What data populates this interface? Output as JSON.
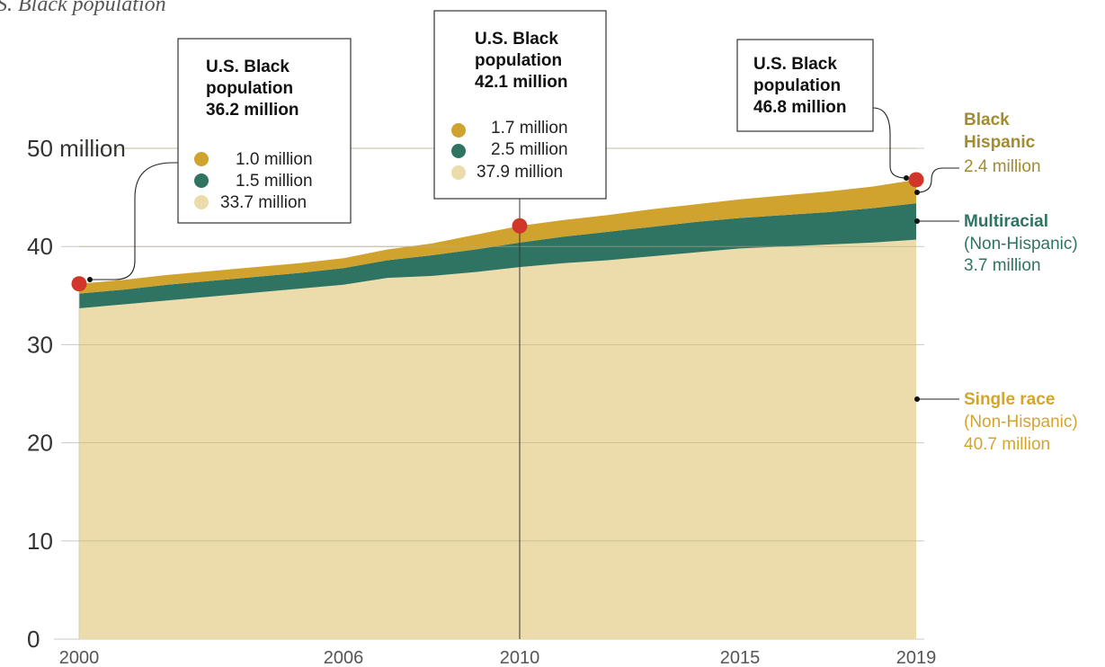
{
  "header": {
    "subtitle": "S. Black population"
  },
  "colors": {
    "single_race": "#ecdcab",
    "multiracial": "#2f7463",
    "hispanic": "#cfa32e",
    "marker": "#d0372a",
    "hispanic_label": "#a38b2e",
    "multiracial_label": "#2f7463",
    "single_label": "#d4a52e"
  },
  "chart_data": {
    "type": "area",
    "stacked": true,
    "x": [
      2000,
      2001,
      2002,
      2003,
      2004,
      2005,
      2006,
      2007,
      2008,
      2009,
      2010,
      2011,
      2012,
      2013,
      2014,
      2015,
      2016,
      2017,
      2018,
      2019
    ],
    "series": [
      {
        "name": "Single race",
        "values": [
          33.7,
          34.1,
          34.5,
          34.9,
          35.3,
          35.7,
          36.1,
          36.8,
          37.0,
          37.4,
          37.9,
          38.3,
          38.6,
          39.0,
          39.4,
          39.8,
          40.0,
          40.2,
          40.4,
          40.7
        ]
      },
      {
        "name": "Multiracial",
        "values": [
          1.5,
          1.5,
          1.6,
          1.6,
          1.6,
          1.6,
          1.7,
          1.8,
          2.1,
          2.3,
          2.5,
          2.7,
          2.9,
          3.0,
          3.1,
          3.1,
          3.2,
          3.3,
          3.5,
          3.7
        ]
      },
      {
        "name": "Black Hispanic",
        "values": [
          1.0,
          1.0,
          1.0,
          1.0,
          1.0,
          1.0,
          1.0,
          1.1,
          1.2,
          1.5,
          1.7,
          1.7,
          1.7,
          1.8,
          1.8,
          1.9,
          2.0,
          2.1,
          2.2,
          2.4
        ]
      }
    ],
    "ylim": [
      0,
      52
    ],
    "yticks": [
      0,
      10,
      20,
      30,
      40,
      50
    ],
    "ytick_labels": [
      "0",
      "10",
      "20",
      "30",
      "40",
      "50 million"
    ],
    "xticks": [
      2000,
      2006,
      2010,
      2015,
      2019
    ],
    "xtick_labels": [
      "2000",
      "2006",
      "2010",
      "2015",
      "2019"
    ],
    "totals": [
      {
        "x": 2000,
        "y": 36.2
      },
      {
        "x": 2010,
        "y": 42.1
      },
      {
        "x": 2019,
        "y": 46.8
      }
    ],
    "grid": true,
    "callouts": {
      "y2000": {
        "title": [
          "U.S. Black",
          "population",
          "36.2 million"
        ],
        "rows": [
          "1.0 million",
          "1.5 million",
          "33.7 million"
        ]
      },
      "y2010": {
        "title": [
          "U.S. Black",
          "population",
          "42.1 million"
        ],
        "rows": [
          "1.7 million",
          "2.5 million",
          "37.9 million"
        ]
      },
      "y2019": {
        "title": [
          "U.S. Black",
          "population",
          "46.8 million"
        ]
      }
    },
    "series_labels": {
      "hispanic": [
        "Black",
        "Hispanic",
        "2.4 million"
      ],
      "multiracial": [
        "Multiracial",
        "(Non-Hispanic)",
        "3.7 million"
      ],
      "single": [
        "Single race",
        "(Non-Hispanic)",
        "40.7 million"
      ]
    }
  }
}
